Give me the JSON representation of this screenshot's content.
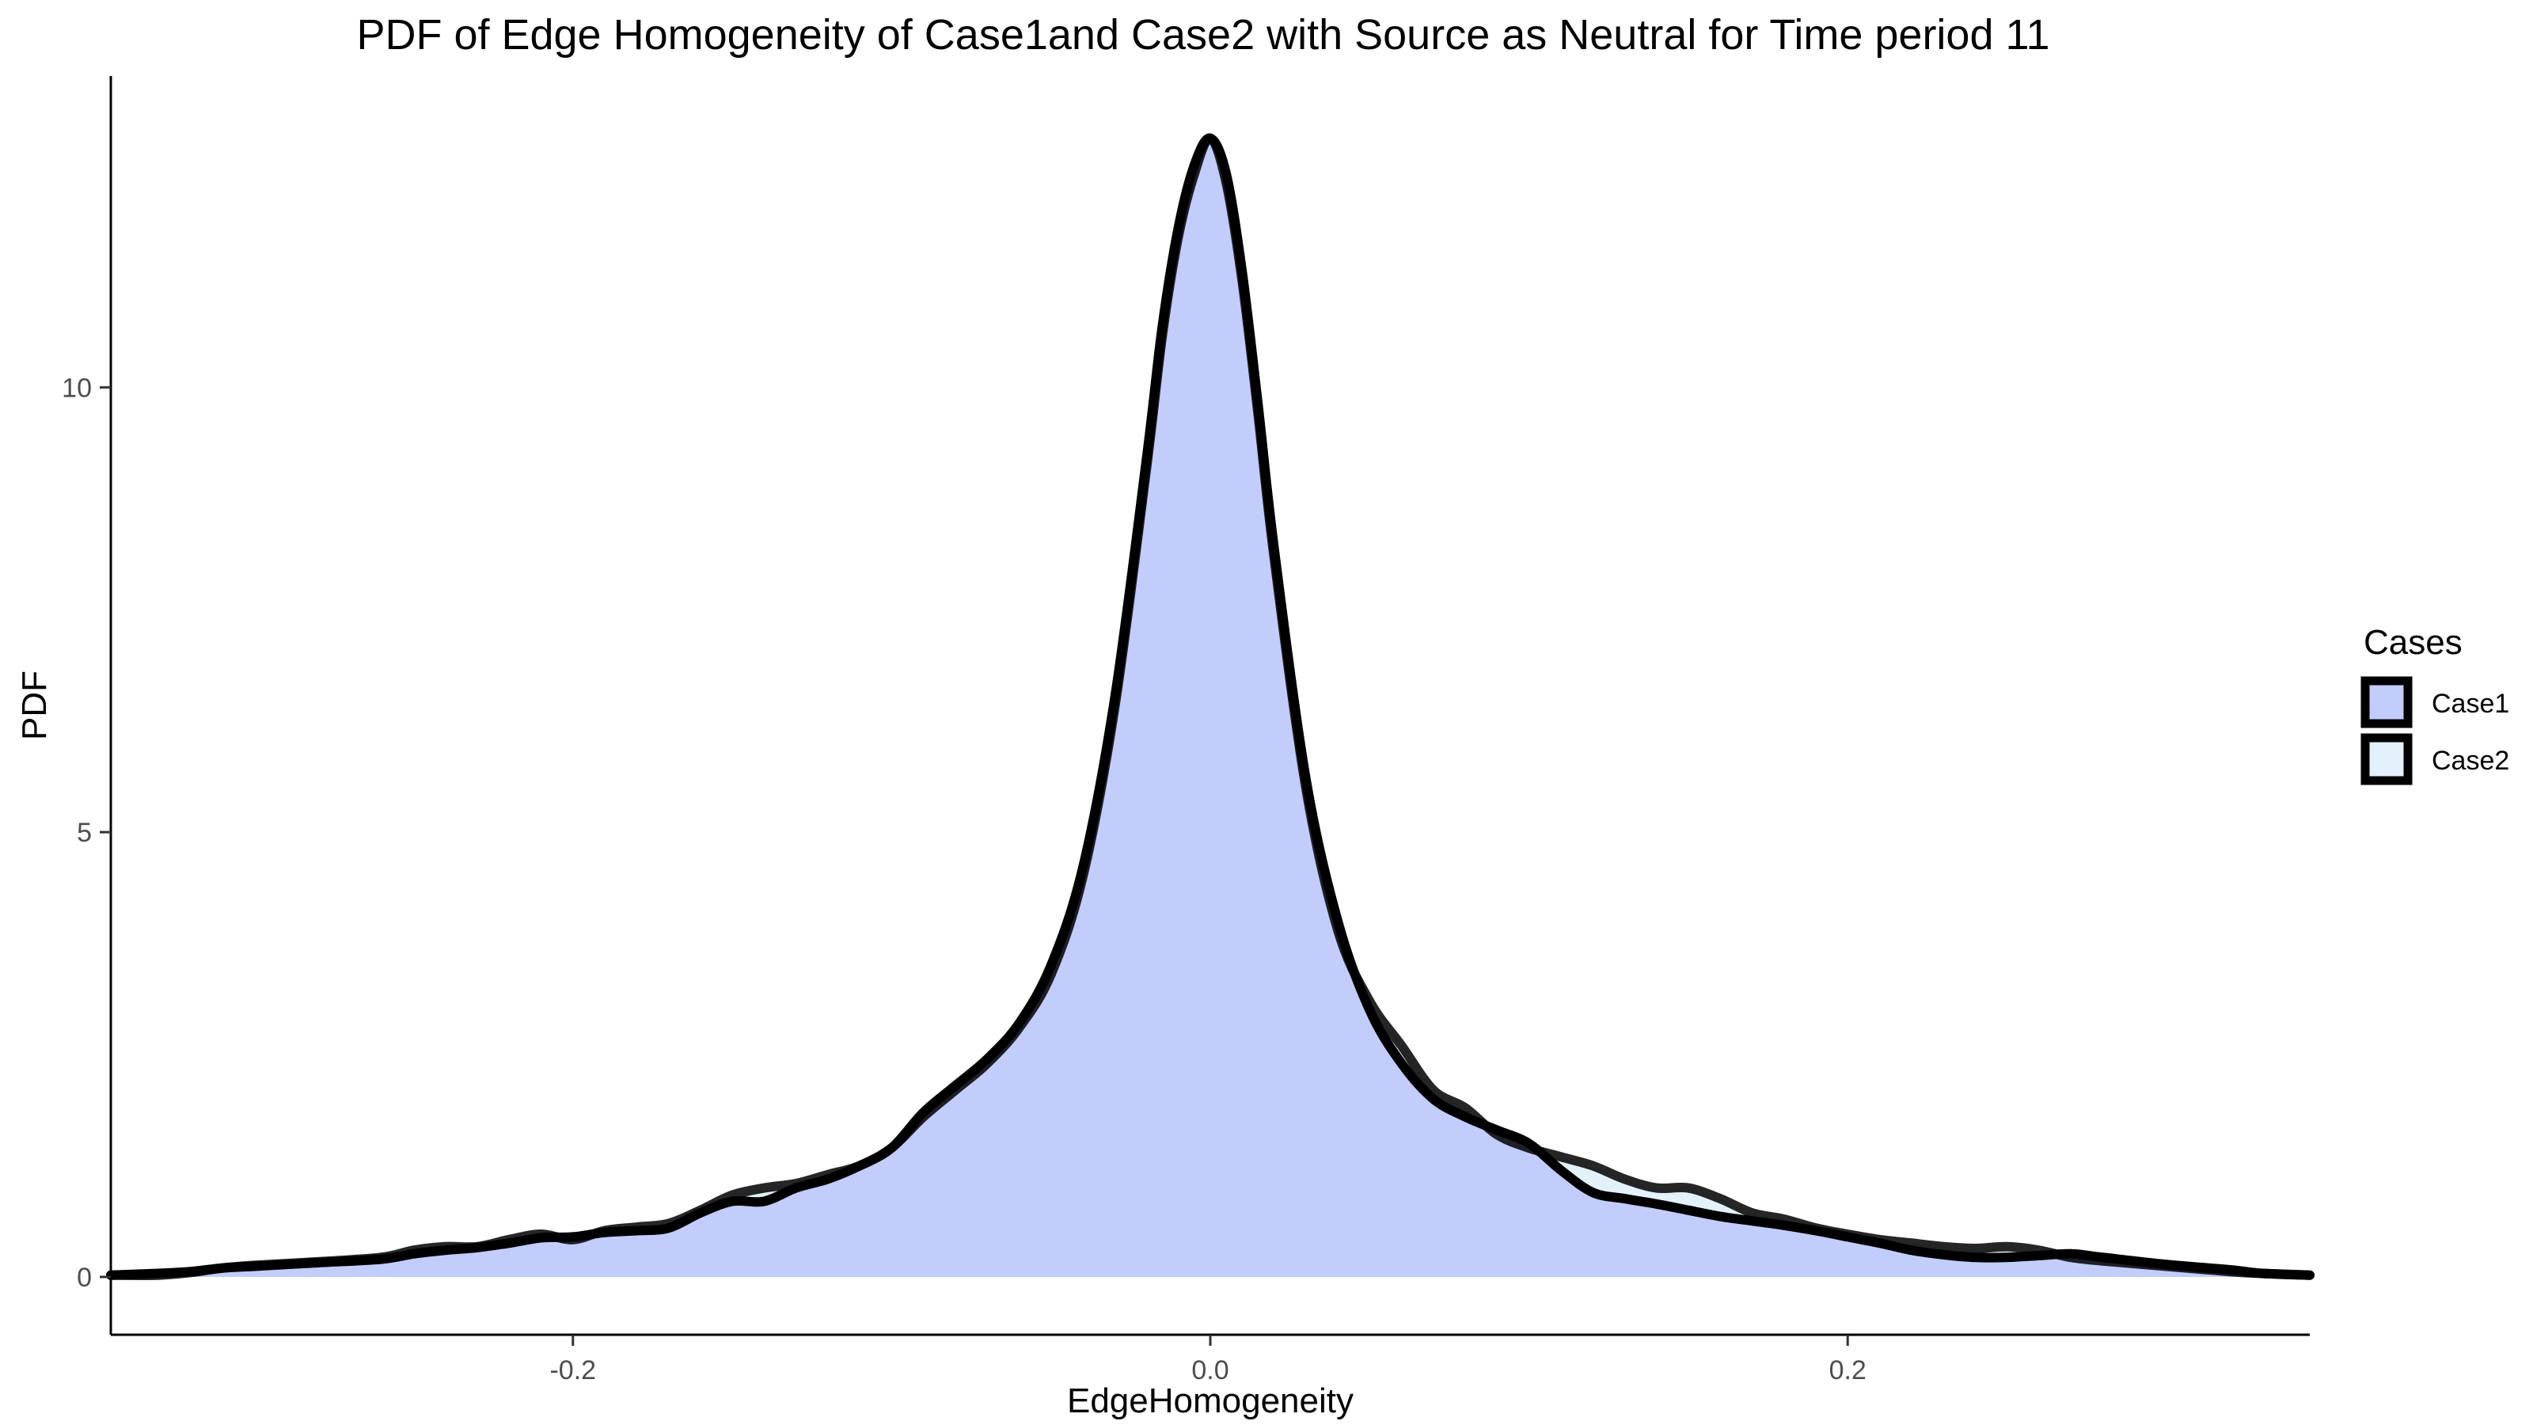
{
  "chart_data": {
    "type": "area",
    "title": "PDF of Edge Homogeneity of Case1and Case2 with Source as Neutral for Time period 11",
    "xlabel": "EdgeHomogeneity",
    "ylabel": "PDF",
    "xlim": [
      -0.345,
      0.345
    ],
    "ylim": [
      -0.65,
      13.5
    ],
    "x_ticks": [
      -0.2,
      0.0,
      0.2
    ],
    "x_tick_labels": [
      "-0.2",
      "0.0",
      "0.2"
    ],
    "y_ticks": [
      0,
      5,
      10
    ],
    "y_tick_labels": [
      "0",
      "5",
      "10"
    ],
    "grid": false,
    "legend": {
      "title": "Cases",
      "position": "right"
    },
    "series": [
      {
        "name": "Case1",
        "fill": "#c3cdfc",
        "stroke": "#000000",
        "x": [
          -0.345,
          -0.33,
          -0.32,
          -0.31,
          -0.3,
          -0.28,
          -0.26,
          -0.25,
          -0.24,
          -0.23,
          -0.22,
          -0.21,
          -0.2,
          -0.19,
          -0.18,
          -0.17,
          -0.16,
          -0.15,
          -0.14,
          -0.13,
          -0.12,
          -0.11,
          -0.1,
          -0.09,
          -0.08,
          -0.07,
          -0.06,
          -0.05,
          -0.04,
          -0.03,
          -0.02,
          -0.015,
          -0.01,
          -0.005,
          0.0,
          0.005,
          0.01,
          0.015,
          0.02,
          0.03,
          0.04,
          0.05,
          0.06,
          0.07,
          0.08,
          0.09,
          0.1,
          0.11,
          0.12,
          0.13,
          0.14,
          0.15,
          0.16,
          0.17,
          0.18,
          0.19,
          0.2,
          0.21,
          0.22,
          0.23,
          0.24,
          0.25,
          0.26,
          0.27,
          0.28,
          0.3,
          0.32,
          0.33,
          0.345
        ],
        "y": [
          0.02,
          0.04,
          0.06,
          0.1,
          0.12,
          0.16,
          0.2,
          0.26,
          0.3,
          0.33,
          0.38,
          0.44,
          0.45,
          0.5,
          0.52,
          0.55,
          0.72,
          0.85,
          0.85,
          1.0,
          1.1,
          1.25,
          1.45,
          1.85,
          2.15,
          2.45,
          2.85,
          3.5,
          4.6,
          6.5,
          9.2,
          10.7,
          11.8,
          12.5,
          12.8,
          12.4,
          11.3,
          9.8,
          8.2,
          5.6,
          4.0,
          3.0,
          2.4,
          2.0,
          1.8,
          1.65,
          1.5,
          1.2,
          0.95,
          0.88,
          0.82,
          0.75,
          0.68,
          0.63,
          0.58,
          0.52,
          0.45,
          0.38,
          0.3,
          0.25,
          0.22,
          0.22,
          0.24,
          0.26,
          0.22,
          0.14,
          0.08,
          0.04,
          0.02
        ]
      },
      {
        "name": "Case2",
        "fill": "#e3f1fb",
        "stroke": "#000000",
        "x": [
          -0.345,
          -0.33,
          -0.32,
          -0.31,
          -0.3,
          -0.28,
          -0.26,
          -0.25,
          -0.24,
          -0.23,
          -0.22,
          -0.21,
          -0.2,
          -0.19,
          -0.18,
          -0.17,
          -0.16,
          -0.15,
          -0.14,
          -0.13,
          -0.12,
          -0.11,
          -0.1,
          -0.09,
          -0.08,
          -0.07,
          -0.06,
          -0.05,
          -0.04,
          -0.03,
          -0.02,
          -0.015,
          -0.01,
          -0.005,
          0.0,
          0.005,
          0.01,
          0.015,
          0.02,
          0.03,
          0.04,
          0.05,
          0.06,
          0.07,
          0.08,
          0.09,
          0.1,
          0.11,
          0.12,
          0.13,
          0.14,
          0.15,
          0.16,
          0.17,
          0.18,
          0.19,
          0.2,
          0.21,
          0.22,
          0.23,
          0.24,
          0.25,
          0.26,
          0.27,
          0.28,
          0.3,
          0.32,
          0.33,
          0.345
        ],
        "y": [
          0.02,
          0.02,
          0.05,
          0.1,
          0.13,
          0.17,
          0.22,
          0.3,
          0.34,
          0.34,
          0.42,
          0.48,
          0.42,
          0.52,
          0.56,
          0.6,
          0.75,
          0.92,
          1.0,
          1.05,
          1.15,
          1.25,
          1.45,
          1.8,
          2.1,
          2.4,
          2.8,
          3.4,
          4.5,
          6.4,
          9.1,
          10.6,
          11.7,
          12.4,
          12.8,
          12.3,
          11.2,
          9.7,
          8.1,
          5.5,
          3.9,
          3.1,
          2.6,
          2.1,
          1.9,
          1.6,
          1.45,
          1.35,
          1.25,
          1.1,
          1.0,
          1.0,
          0.88,
          0.72,
          0.65,
          0.55,
          0.48,
          0.42,
          0.38,
          0.34,
          0.32,
          0.34,
          0.3,
          0.22,
          0.18,
          0.12,
          0.06,
          0.04,
          0.02
        ]
      }
    ]
  }
}
